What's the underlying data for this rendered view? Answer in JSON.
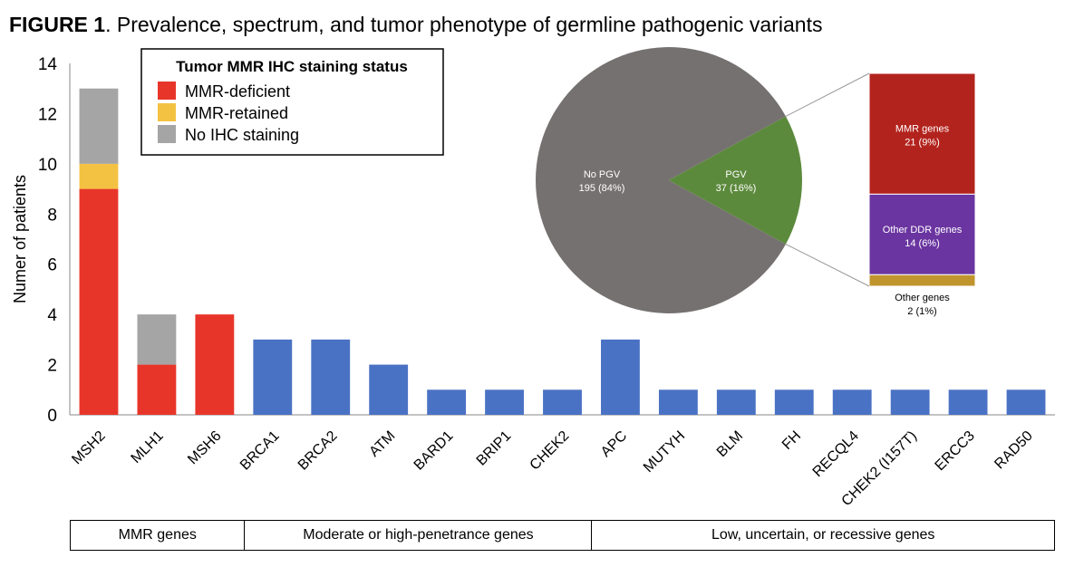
{
  "figure": {
    "label": "FIGURE 1",
    "caption": ". Prevalence, spectrum, and tumor phenotype of germline pathogenic variants"
  },
  "chart_data": [
    {
      "type": "bar",
      "stacked": true,
      "ylabel": "Numer of patients",
      "ylim": [
        0,
        14
      ],
      "yticks": [
        0,
        2,
        4,
        6,
        8,
        10,
        12,
        14
      ],
      "grid": false,
      "legend": {
        "title": "Tumor MMR IHC staining status",
        "placement": "top-left",
        "entries": [
          {
            "label": "MMR-deficient",
            "color": "#e8352a"
          },
          {
            "label": "MMR-retained",
            "color": "#f4c242"
          },
          {
            "label": "No IHC staining",
            "color": "#a5a5a5"
          }
        ]
      },
      "categories": [
        "MSH2",
        "MLH1",
        "MSH6",
        "BRCA1",
        "BRCA2",
        "ATM",
        "BARD1",
        "BRIP1",
        "CHEK2",
        "APC",
        "MUTYH",
        "BLM",
        "FH",
        "RECQL4",
        "CHEK2 (I157T)",
        "ERCC3",
        "RAD50"
      ],
      "series": [
        {
          "name": "MMR-deficient",
          "color": "#e8352a",
          "values": [
            9,
            2,
            4,
            0,
            0,
            0,
            0,
            0,
            0,
            0,
            0,
            0,
            0,
            0,
            0,
            0,
            0
          ]
        },
        {
          "name": "MMR-retained",
          "color": "#f4c242",
          "values": [
            1,
            0,
            0,
            0,
            0,
            0,
            0,
            0,
            0,
            0,
            0,
            0,
            0,
            0,
            0,
            0,
            0
          ]
        },
        {
          "name": "No IHC staining",
          "color": "#a5a5a5",
          "values": [
            3,
            2,
            0,
            0,
            0,
            0,
            0,
            0,
            0,
            0,
            0,
            0,
            0,
            0,
            0,
            0,
            0
          ]
        },
        {
          "color": "#4a72c4",
          "values": [
            0,
            0,
            0,
            3,
            3,
            2,
            1,
            1,
            1,
            3,
            1,
            1,
            1,
            1,
            1,
            1,
            1
          ]
        }
      ]
    },
    {
      "type": "pie",
      "slices": [
        {
          "label": "No PGV",
          "value_text": "195 (84%)",
          "value": 195,
          "color": "#767171"
        },
        {
          "label": "PGV",
          "value_text": "37 (16%)",
          "value": 37,
          "color": "#5c8a3c"
        }
      ]
    },
    {
      "type": "bar",
      "stacked": true,
      "segments": [
        {
          "label": "MMR genes",
          "value_text": "21 (9%)",
          "value": 21,
          "color": "#b3231d"
        },
        {
          "label": "Other DDR genes",
          "value_text": "14 (6%)",
          "value": 14,
          "color": "#6a35a0"
        },
        {
          "label": "Other genes",
          "value_text": "2 (1%)",
          "value": 2,
          "color": "#c0952e"
        }
      ]
    }
  ],
  "gene_groups": [
    {
      "label": "MMR genes",
      "count": 3
    },
    {
      "label": "Moderate or high-penetrance genes",
      "count": 6
    },
    {
      "label": "Low, uncertain, or recessive genes",
      "count": 8
    }
  ]
}
